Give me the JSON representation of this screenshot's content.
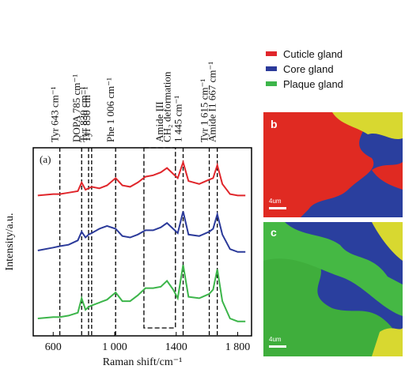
{
  "chart_data": {
    "type": "line",
    "x_label": "Raman shift/cm⁻¹",
    "y_label": "Intensity/a.u.",
    "panel_label": "(a)",
    "x": [
      500,
      600,
      643,
      700,
      760,
      785,
      810,
      830,
      850,
      900,
      950,
      1006,
      1050,
      1100,
      1150,
      1200,
      1250,
      1300,
      1340,
      1380,
      1410,
      1445,
      1480,
      1550,
      1615,
      1640,
      1667,
      1700,
      1750,
      1800,
      1850
    ],
    "series": [
      {
        "name": "Cuticle gland",
        "color": "#e0262b",
        "values": [
          9.7,
          9.8,
          9.8,
          9.9,
          10.0,
          10.6,
          10.1,
          10.2,
          10.3,
          10.2,
          10.4,
          10.9,
          10.4,
          10.3,
          10.6,
          11.0,
          11.1,
          11.3,
          11.6,
          11.2,
          10.9,
          12.0,
          10.7,
          10.5,
          10.8,
          10.9,
          11.8,
          10.5,
          9.8,
          9.7,
          9.7
        ]
      },
      {
        "name": "Core gland",
        "color": "#2b3a9a",
        "values": [
          5.9,
          6.1,
          6.2,
          6.3,
          6.6,
          7.2,
          6.8,
          7.0,
          7.1,
          7.4,
          7.6,
          7.4,
          6.9,
          6.8,
          7.0,
          7.3,
          7.3,
          7.5,
          7.8,
          7.4,
          7.1,
          8.6,
          7.0,
          6.9,
          7.2,
          7.4,
          8.4,
          7.0,
          6.0,
          5.8,
          5.8
        ]
      },
      {
        "name": "Plaque gland",
        "color": "#3cb54a",
        "values": [
          1.2,
          1.3,
          1.3,
          1.4,
          1.6,
          2.6,
          1.8,
          2.0,
          2.1,
          2.3,
          2.5,
          3.0,
          2.4,
          2.4,
          2.8,
          3.3,
          3.3,
          3.4,
          3.8,
          3.2,
          2.6,
          4.9,
          2.7,
          2.6,
          2.9,
          3.2,
          4.6,
          2.4,
          1.2,
          1.0,
          1.0
        ]
      }
    ],
    "xlim": [
      470,
      1890
    ],
    "ylim": [
      0,
      13
    ],
    "xticks": [
      600,
      {
        "value": 1000,
        "label": "1 000"
      },
      1400,
      {
        "value": 1800,
        "label": "1 800"
      }
    ],
    "annotations": [
      {
        "x": 643,
        "label": "Tyr 643 cm⁻¹"
      },
      {
        "x": 785,
        "label": "DOPA 785 cm⁻¹"
      },
      {
        "x": 830,
        "label": "Tyr 830 cm⁻¹"
      },
      {
        "x": 850,
        "label": "Tyr 850 cm⁻¹"
      },
      {
        "x": 1006,
        "label": "Phe 1 006 cm⁻¹"
      },
      {
        "x": 1445,
        "label": "1 445 cm⁻¹",
        "label2": "CH₂ deformation"
      },
      {
        "x": 1615,
        "label": "Tyr 1 615 cm⁻¹"
      },
      {
        "x": 1667,
        "label": "Amide I1 667 cm⁻¹"
      }
    ],
    "box": {
      "x": [
        1190,
        1395
      ],
      "label": "Amide III"
    },
    "map_b_label": "b",
    "map_c_label": "c",
    "scale_b": "4um",
    "scale_c": "4um"
  }
}
